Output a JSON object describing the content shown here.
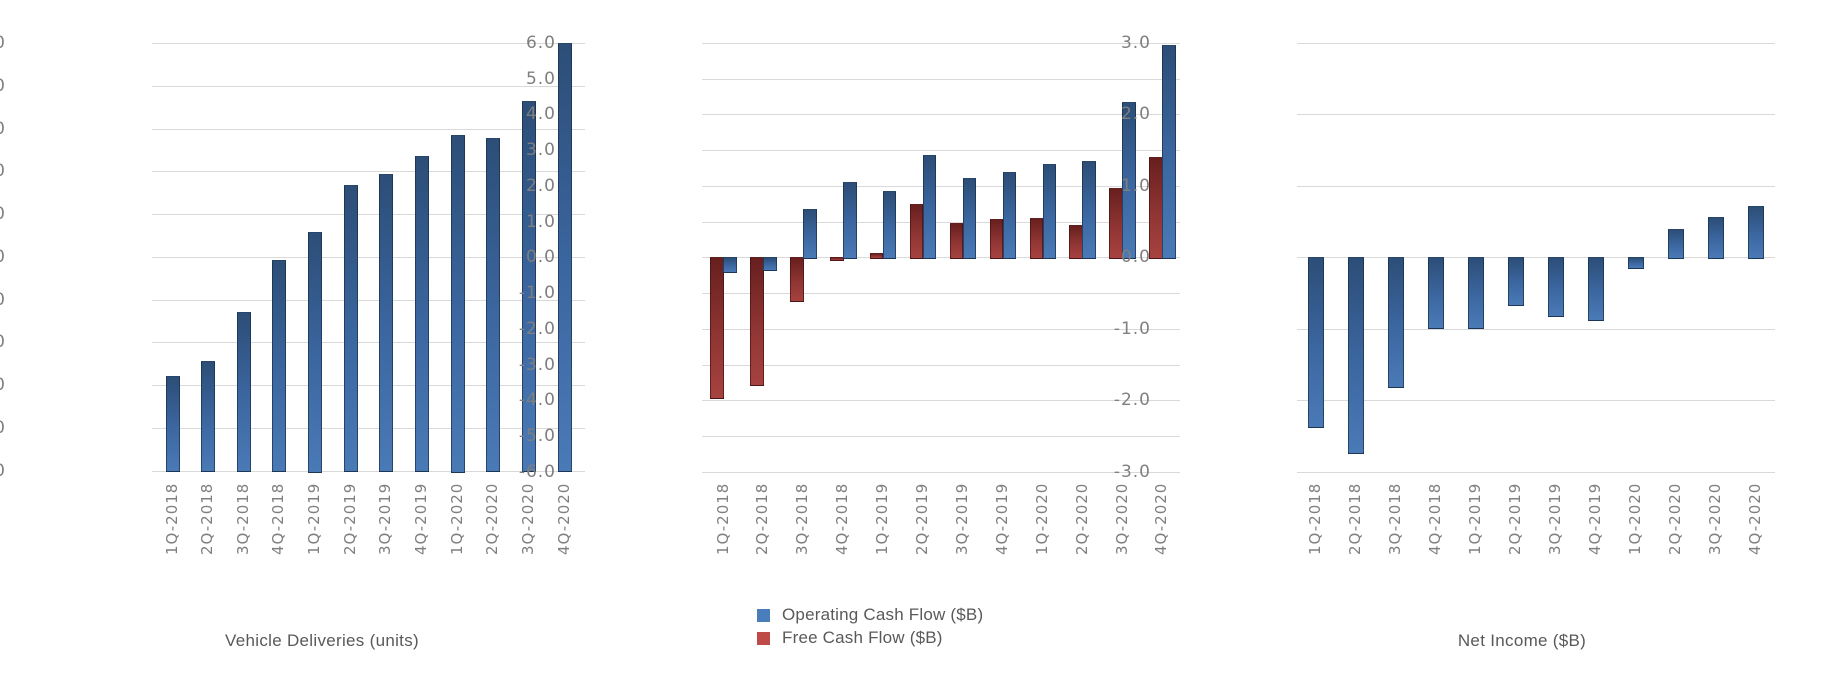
{
  "page": {
    "background": "#FFFFFF"
  },
  "palette": {
    "gridline": "#D9D9D9",
    "axis_label_color": "#7F7F7F",
    "caption_color": "#595959",
    "blue": {
      "top": "#2C4E77",
      "mid": "#3C67A1",
      "bottom": "#4A7AB6",
      "border": "#16304A",
      "legend": "#4A7EBB"
    },
    "red": {
      "top": "#671F1E",
      "mid": "#8F3533",
      "bottom": "#A64240",
      "border": "#3E100F",
      "legend": "#BE4B48"
    }
  },
  "chart_data": [
    {
      "id": "deliveries",
      "type": "bar",
      "title": "Vehicle Deliveries (units)",
      "categories": [
        "1Q-2018",
        "2Q-2018",
        "3Q-2018",
        "4Q-2018",
        "1Q-2019",
        "2Q-2019",
        "3Q-2019",
        "4Q-2019",
        "1Q-2020",
        "2Q-2020",
        "3Q-2020",
        "4Q-2020"
      ],
      "values": [
        110000,
        128500,
        185500,
        246000,
        279000,
        334000,
        347000,
        368000,
        393000,
        389000,
        432000,
        499500
      ],
      "series_color": "blue",
      "ylim": [
        0,
        500000
      ],
      "ytick": 50000,
      "tick_format": "thousands",
      "grid": true,
      "legend_position": "none",
      "xlabel": "",
      "ylabel": ""
    },
    {
      "id": "cash_flow",
      "type": "bar",
      "title": "",
      "categories": [
        "1Q-2018",
        "2Q-2018",
        "3Q-2018",
        "4Q-2018",
        "1Q-2019",
        "2Q-2019",
        "3Q-2019",
        "4Q-2019",
        "1Q-2020",
        "2Q-2020",
        "3Q-2020",
        "4Q-2020"
      ],
      "series": [
        {
          "name": "Operating Cash Flow ($B)",
          "color": "blue",
          "values": [
            -0.39,
            -0.32,
            1.35,
            2.1,
            1.86,
            2.85,
            2.22,
            2.4,
            2.6,
            2.7,
            4.35,
            5.95
          ]
        },
        {
          "name": "Free Cash Flow ($B)",
          "color": "red",
          "values": [
            -3.9,
            -3.55,
            -1.2,
            -0.05,
            0.12,
            1.48,
            0.97,
            1.08,
            1.1,
            0.9,
            1.95,
            2.8
          ]
        }
      ],
      "ylim": [
        -6,
        6
      ],
      "ytick": 1,
      "tick_format": "decimal1",
      "grid": true,
      "legend_position": "bottom",
      "xlabel": "",
      "ylabel": ""
    },
    {
      "id": "net_income",
      "type": "bar",
      "title": "Net Income ($B)",
      "categories": [
        "1Q-2018",
        "2Q-2018",
        "3Q-2018",
        "4Q-2018",
        "1Q-2019",
        "2Q-2019",
        "3Q-2019",
        "4Q-2019",
        "1Q-2020",
        "2Q-2020",
        "3Q-2020",
        "4Q-2020"
      ],
      "values": [
        -2.36,
        -2.72,
        -1.8,
        -0.97,
        -0.97,
        -0.66,
        -0.81,
        -0.86,
        -0.14,
        0.4,
        0.56,
        0.72
      ],
      "series_color": "blue",
      "ylim": [
        -3,
        3
      ],
      "ytick": 1,
      "tick_format": "decimal1",
      "grid": true,
      "legend_position": "none",
      "xlabel": "",
      "ylabel": ""
    }
  ]
}
